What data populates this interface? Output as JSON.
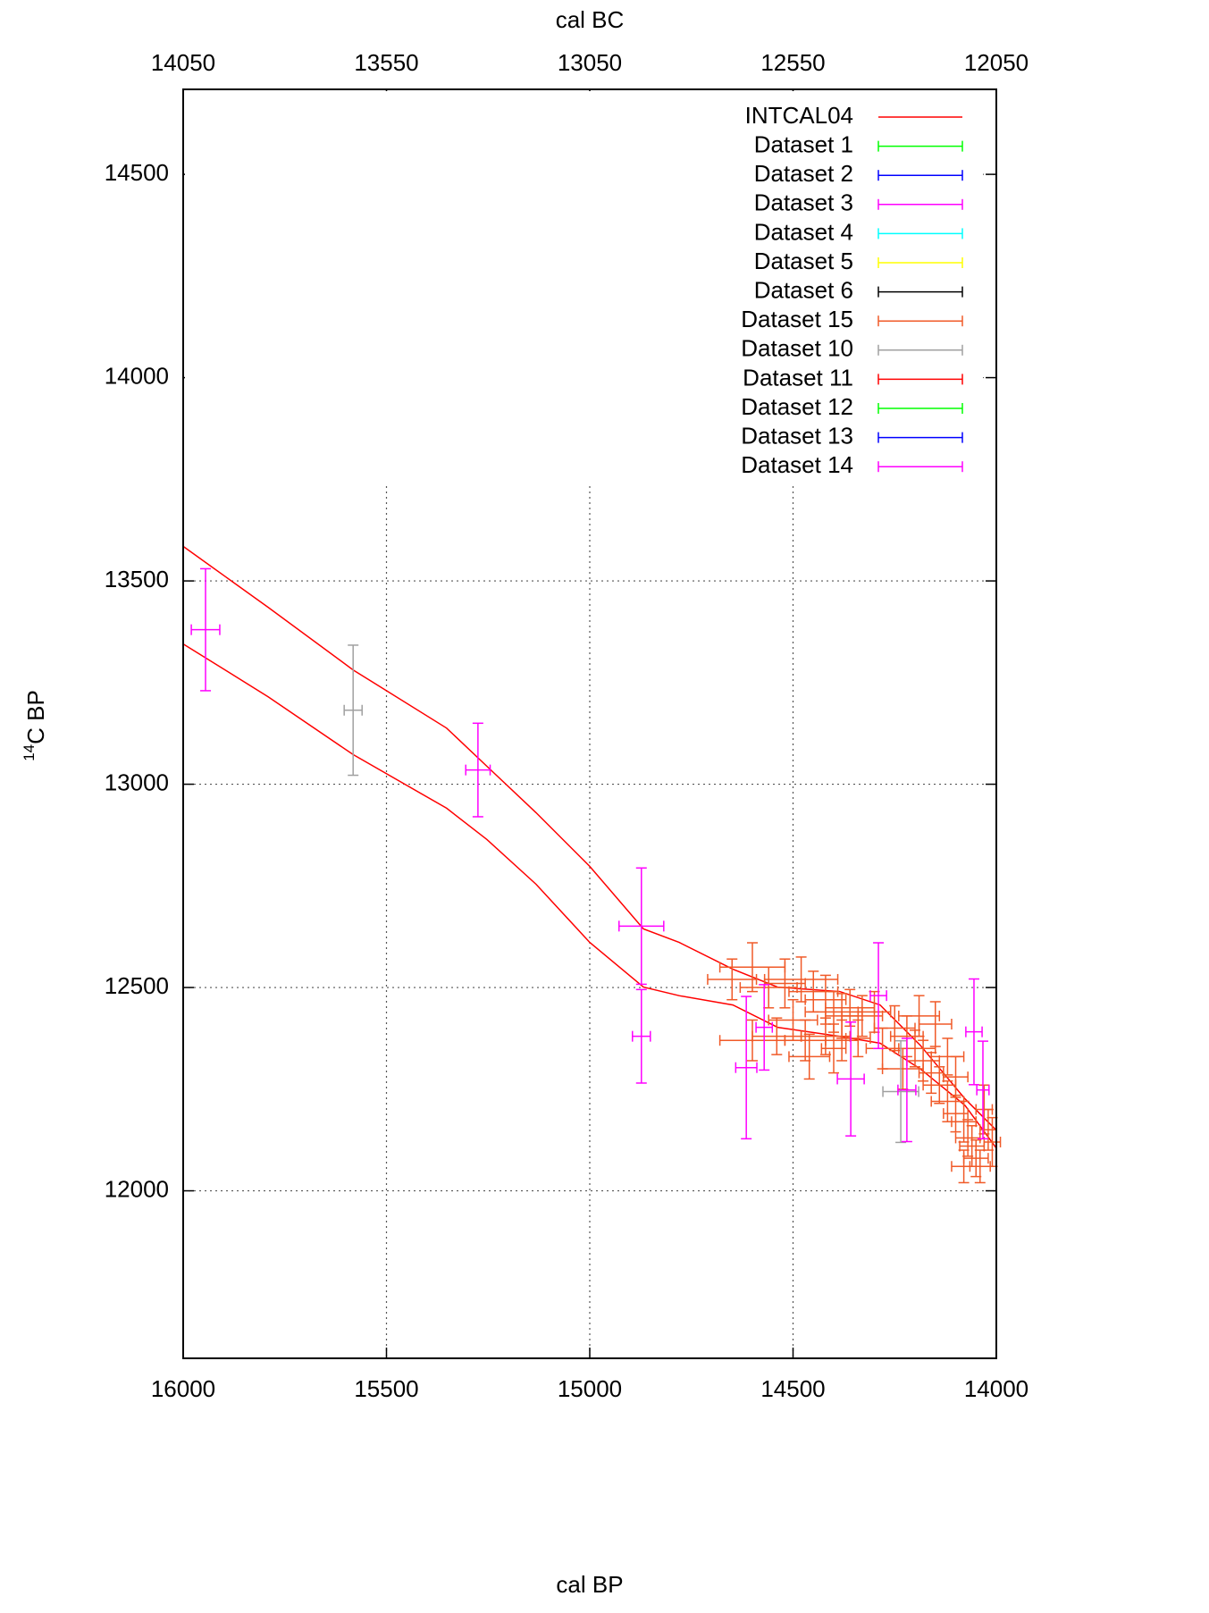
{
  "chart_data": {
    "type": "errorbar",
    "x_label": "cal BP",
    "x2_label": "cal BC",
    "y_label_sup": "14",
    "y_label": "C BP",
    "xlim": [
      16000,
      14000
    ],
    "xticks": [
      16000,
      15500,
      15000,
      14500,
      14000
    ],
    "x2lim": [
      14050,
      12050
    ],
    "x2ticks": [
      14050,
      13550,
      13050,
      12550,
      12050
    ],
    "ylim": [
      11588,
      14709
    ],
    "yticks": [
      12000,
      12500,
      13000,
      13500,
      14000,
      14500
    ],
    "grid": true,
    "legend": "top-right",
    "curve": {
      "name": "INTCAL04",
      "color": "#ff0000",
      "x": [
        16000,
        15791,
        15582,
        15352,
        15253,
        15132,
        15000,
        14868,
        14780,
        14648,
        14538,
        14385,
        14286,
        14187,
        14077,
        14000
      ],
      "upper": [
        13585,
        13435,
        13281,
        13138,
        13044,
        12930,
        12798,
        12644,
        12611,
        12545,
        12501,
        12490,
        12457,
        12358,
        12226,
        12149
      ],
      "lower": [
        13345,
        13215,
        13073,
        12941,
        12864,
        12754,
        12611,
        12501,
        12480,
        12457,
        12402,
        12380,
        12363,
        12300,
        12210,
        12105
      ]
    },
    "series": [
      {
        "name": "Dataset 1",
        "color": "#00ff00",
        "x": [],
        "values": [],
        "xerr": [],
        "yerr": []
      },
      {
        "name": "Dataset 2",
        "color": "#0000ff",
        "x": [],
        "values": [],
        "xerr": [],
        "yerr": []
      },
      {
        "name": "Dataset 3",
        "color": "#ff00ff",
        "x": [],
        "values": [],
        "xerr": [],
        "yerr": []
      },
      {
        "name": "Dataset 4",
        "color": "#00ffff",
        "x": [],
        "values": [],
        "xerr": [],
        "yerr": []
      },
      {
        "name": "Dataset 5",
        "color": "#ffff00",
        "x": [],
        "values": [],
        "xerr": [],
        "yerr": []
      },
      {
        "name": "Dataset 6",
        "color": "#000000",
        "x": [],
        "values": [],
        "xerr": [],
        "yerr": []
      },
      {
        "name": "Dataset 15",
        "color": "#f05a28",
        "x": [
          14650,
          14600,
          14560,
          14520,
          14480,
          14450,
          14420,
          14400,
          14380,
          14360,
          14330,
          14300,
          14600,
          14540,
          14470,
          14420,
          14380,
          14340,
          14500,
          14460,
          14400,
          14250,
          14220,
          14200,
          14180,
          14160,
          14140,
          14120,
          14100,
          14080,
          14070,
          14060,
          14050,
          14040,
          14080,
          14030,
          14020,
          14100,
          14150,
          14230,
          14280,
          14190,
          14120,
          14010
        ],
        "values": [
          12520,
          12550,
          12500,
          12510,
          12520,
          12490,
          12470,
          12440,
          12430,
          12450,
          12430,
          12440,
          12370,
          12380,
          12370,
          12380,
          12370,
          12375,
          12420,
          12330,
          12350,
          12400,
          12380,
          12350,
          12320,
          12290,
          12260,
          12220,
          12190,
          12170,
          12130,
          12110,
          12080,
          12060,
          12060,
          12200,
          12150,
          12280,
          12410,
          12300,
          12350,
          12430,
          12330,
          12120
        ],
        "xerr": [
          60,
          80,
          70,
          50,
          90,
          60,
          50,
          70,
          40,
          60,
          50,
          40,
          80,
          60,
          50,
          60,
          40,
          30,
          60,
          50,
          30,
          50,
          40,
          50,
          40,
          30,
          40,
          40,
          30,
          30,
          30,
          30,
          30,
          25,
          30,
          20,
          20,
          30,
          40,
          50,
          40,
          50,
          40,
          20
        ],
        "yerr": [
          50,
          60,
          50,
          60,
          55,
          50,
          60,
          50,
          55,
          45,
          50,
          50,
          50,
          45,
          50,
          45,
          50,
          45,
          50,
          55,
          60,
          55,
          50,
          45,
          50,
          50,
          45,
          50,
          45,
          50,
          45,
          50,
          45,
          40,
          40,
          60,
          50,
          50,
          55,
          50,
          50,
          50,
          45,
          60
        ]
      },
      {
        "name": "Dataset 10",
        "color": "#a0a0a0",
        "x": [
          15582,
          14235
        ],
        "values": [
          13182,
          12244
        ],
        "xerr": [
          22,
          44
        ],
        "yerr": [
          160,
          125
        ]
      },
      {
        "name": "Dataset 11",
        "color": "#ff0000",
        "x": [],
        "values": [],
        "xerr": [],
        "yerr": []
      },
      {
        "name": "Dataset 12",
        "color": "#00ff00",
        "x": [],
        "values": [],
        "xerr": [],
        "yerr": []
      },
      {
        "name": "Dataset 13",
        "color": "#0000ff",
        "x": [],
        "values": [],
        "xerr": [],
        "yerr": []
      },
      {
        "name": "Dataset 14",
        "color": "#ff00ff",
        "x": [
          15945,
          15275,
          14873,
          14873,
          14615,
          14571,
          14358,
          14290,
          14220,
          14055,
          14033
        ],
        "values": [
          13380,
          13035,
          12651,
          12380,
          12303,
          12402,
          12275,
          12480,
          12248,
          12391,
          12248
        ],
        "xerr": [
          35,
          30,
          55,
          22,
          26,
          20,
          33,
          20,
          22,
          20,
          15
        ],
        "yerr": [
          150,
          115,
          143,
          115,
          175,
          105,
          140,
          130,
          127,
          130,
          120
        ]
      }
    ]
  }
}
